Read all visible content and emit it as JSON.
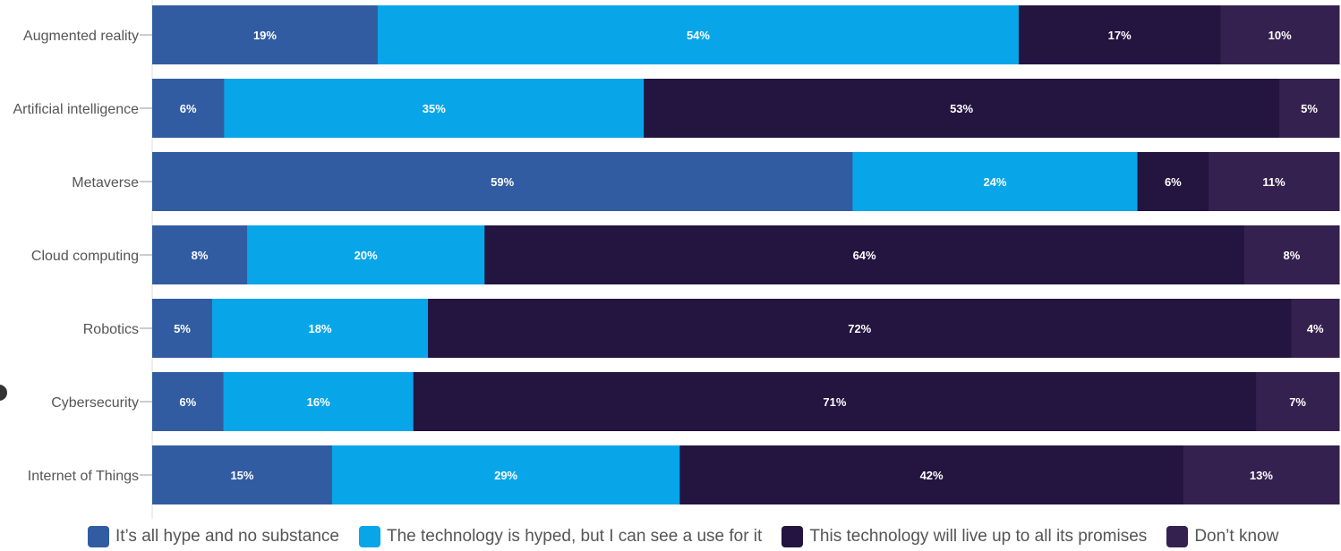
{
  "chart_data": {
    "type": "bar",
    "orientation": "horizontal",
    "stacked": true,
    "normalized_100": true,
    "categories": [
      "Augmented reality",
      "Artificial intelligence",
      "Metaverse",
      "Cloud computing",
      "Robotics",
      "Cybersecurity",
      "Internet of Things"
    ],
    "series": [
      {
        "name": "It’s all hype and no substance",
        "color": "#325ca1",
        "values": [
          19,
          6,
          59,
          8,
          5,
          6,
          15
        ]
      },
      {
        "name": "The technology is hyped, but I can see a use for it",
        "color": "#08a6e9",
        "values": [
          54,
          35,
          24,
          20,
          18,
          16,
          29
        ]
      },
      {
        "name": "This technology will live up to all its promises",
        "color": "#231440",
        "values": [
          17,
          53,
          6,
          64,
          72,
          71,
          42
        ]
      },
      {
        "name": "Don’t know",
        "color": "#35214f",
        "values": [
          10,
          5,
          11,
          8,
          4,
          7,
          13
        ]
      }
    ],
    "value_suffix": "%",
    "legend_position": "bottom",
    "grid": false
  }
}
